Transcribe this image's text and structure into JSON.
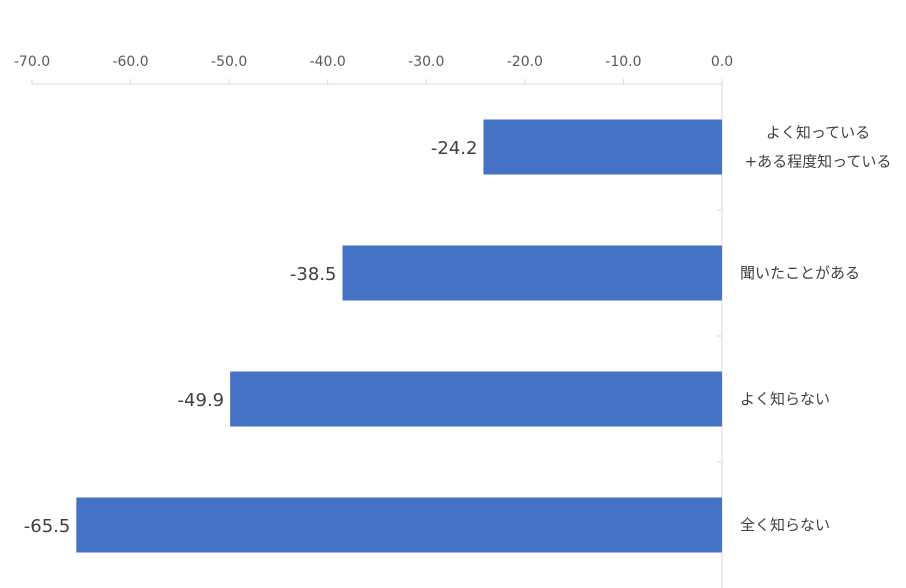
{
  "chart_data": {
    "type": "bar",
    "orientation": "horizontal",
    "title": "",
    "xlabel": "",
    "ylabel": "",
    "xlim": [
      -70,
      0
    ],
    "x_ticks": [
      -70,
      -60,
      -50,
      -40,
      -30,
      -20,
      -10,
      0
    ],
    "x_tick_labels": [
      "-70.0",
      "-60.0",
      "-50.0",
      "-40.0",
      "-30.0",
      "-20.0",
      "-10.0",
      "0.0"
    ],
    "x_axis_position": "top",
    "categories": [
      [
        "よく知っている",
        "+ある程度知っている"
      ],
      [
        "聞いたことがある"
      ],
      [
        "よく知らない"
      ],
      [
        "全く知らない"
      ]
    ],
    "values": [
      -24.2,
      -38.5,
      -49.9,
      -65.5
    ],
    "data_labels": [
      "-24.2",
      "-38.5",
      "-49.9",
      "-65.5"
    ],
    "bar_color": "#4472c4",
    "grid": false,
    "legend": "none"
  }
}
